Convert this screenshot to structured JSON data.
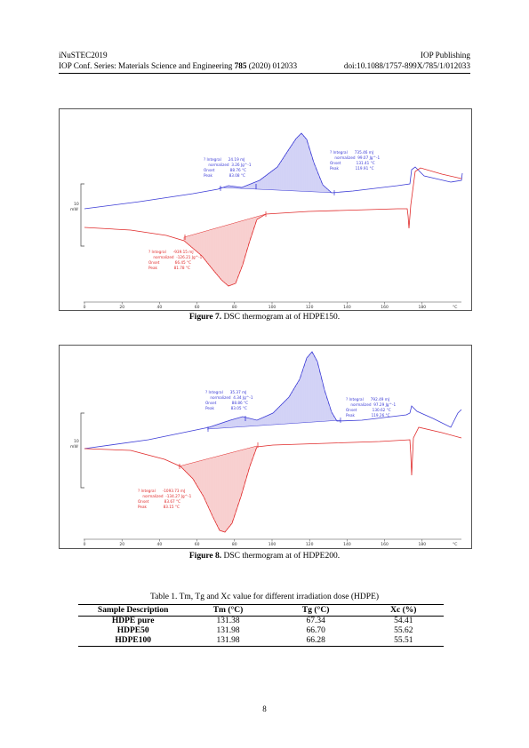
{
  "header": {
    "conference": "iNuSTEC2019",
    "publisher": "IOP Publishing",
    "series_prefix": "IOP Conf. Series: Materials Science and Engineering ",
    "volume": "785",
    "series_suffix": " (2020) 012033",
    "doi": "doi:10.1088/1757-899X/785/1/012033"
  },
  "figure7": {
    "label": "Figure 7.",
    "caption": " DSC thermogram at of HDPE150.",
    "ylabel_top": "10",
    "ylabel_bottom": "mW",
    "x_unit": "°C",
    "x_ticks": [
      "0",
      "20",
      "40",
      "60",
      "80",
      "100",
      "120",
      "140",
      "160",
      "180"
    ],
    "ann_left": [
      "? Integral      24.19 mJ",
      "    normalized  3.26 Jg^-1",
      "Onset             88.76 °C",
      "Peak              83.08 °C"
    ],
    "ann_right": [
      "? Integral      735.46 mJ",
      "    normalized  99.07 Jg^-1",
      "Onset             131.41 °C",
      "Peak              119.91 °C"
    ],
    "ann_bottom": [
      "? Integral      -939.15 mJ",
      "    normalized  -126.21 Jg^-1",
      "Onset             66.45 °C",
      "Peak              81.78 °C"
    ]
  },
  "figure8": {
    "label": "Figure 8.",
    "caption": " DSC thermogram at of HDPE200.",
    "ylabel_top": "10",
    "ylabel_bottom": "mW",
    "x_unit": "°C",
    "x_ticks": [
      "0",
      "20",
      "40",
      "60",
      "80",
      "100",
      "120",
      "140",
      "160",
      "180"
    ],
    "ann_left": [
      "? Integral      35.37 mJ",
      "    normalized  4.34 Jg^-1",
      "Onset             88.86 °C",
      "Peak              83.05 °C"
    ],
    "ann_right": [
      "? Integral      792.49 mJ",
      "    normalized  97.29 Jg^-1",
      "Onset             130.62 °C",
      "Peak              119.26 °C"
    ],
    "ann_bottom": [
      "? Integral      -1093.73 mJ",
      "    normalized  -134.27 Jg^-1",
      "Onset             83.67 °C",
      "Peak              83.15 °C"
    ]
  },
  "table1": {
    "title": "Table 1. Tm, Tg and Xc value for different irradiation dose (HDPE)",
    "columns": [
      "Sample Description",
      "Tm (°C)",
      "Tg (°C)",
      "Xc (%)"
    ],
    "rows": [
      [
        "HDPE pure",
        "131.38",
        "67.34",
        "54.41"
      ],
      [
        "HDPE50",
        "131.98",
        "66.70",
        "55.62"
      ],
      [
        "HDPE100",
        "131.98",
        "66.28",
        "55.51"
      ]
    ]
  },
  "colors": {
    "heating_curve": "#3b3bd6",
    "cooling_curve": "#e02a2a",
    "frame": "#555555"
  },
  "page_number": "8"
}
